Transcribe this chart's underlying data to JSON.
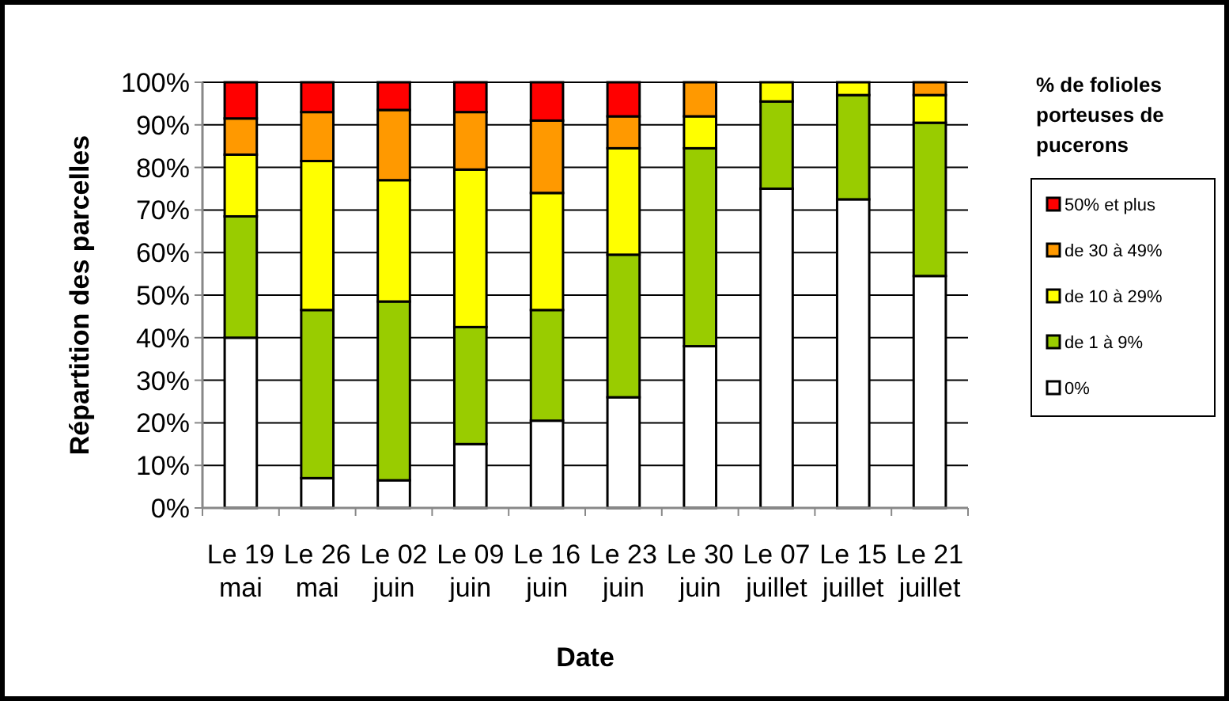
{
  "chart_data": {
    "type": "bar",
    "stacked": true,
    "xlabel": "Date",
    "ylabel": "Répartition des parcelles",
    "legend_title": "% de folioles porteuses de pucerons",
    "legend": "right",
    "grid": "y",
    "categories": [
      "Le 19 mai",
      "Le 26 mai",
      "Le 02 juin",
      "Le 09 juin",
      "Le 16 juin",
      "Le 23 juin",
      "Le 30 juin",
      "Le 07 juillet",
      "Le 15 juillet",
      "Le 21 juillet"
    ],
    "ylim": [
      0,
      100
    ],
    "yticks": [
      {
        "value": 0,
        "label": "0%"
      },
      {
        "value": 10,
        "label": "10%"
      },
      {
        "value": 20,
        "label": "20%"
      },
      {
        "value": 30,
        "label": "30%"
      },
      {
        "value": 40,
        "label": "40%"
      },
      {
        "value": 50,
        "label": "50%"
      },
      {
        "value": 60,
        "label": "60%"
      },
      {
        "value": 70,
        "label": "70%"
      },
      {
        "value": 80,
        "label": "80%"
      },
      {
        "value": 90,
        "label": "90%"
      },
      {
        "value": 100,
        "label": "100%"
      }
    ],
    "series": [
      {
        "name": "0%",
        "color": "#ffffff",
        "values": [
          40,
          7,
          6.5,
          15,
          20.5,
          26,
          38,
          75,
          72.5,
          54.5
        ]
      },
      {
        "name": "de 1 à 9%",
        "color": "#99cc00",
        "values": [
          28.5,
          39.5,
          42,
          27.5,
          26,
          33.5,
          46.5,
          20.5,
          24.5,
          36
        ]
      },
      {
        "name": "de 10 à 29%",
        "color": "#ffff00",
        "values": [
          14.5,
          35,
          28.5,
          37,
          27.5,
          25,
          7.5,
          4.5,
          3,
          6.5
        ]
      },
      {
        "name": "de 30 à 49%",
        "color": "#ff9900",
        "values": [
          8.5,
          11.5,
          16.5,
          13.5,
          17,
          7.5,
          8,
          0,
          0,
          3
        ]
      },
      {
        "name": "50% et plus",
        "color": "#ff0000",
        "values": [
          8.5,
          7,
          6.5,
          7,
          9,
          8,
          0,
          0,
          0,
          0
        ]
      }
    ]
  }
}
